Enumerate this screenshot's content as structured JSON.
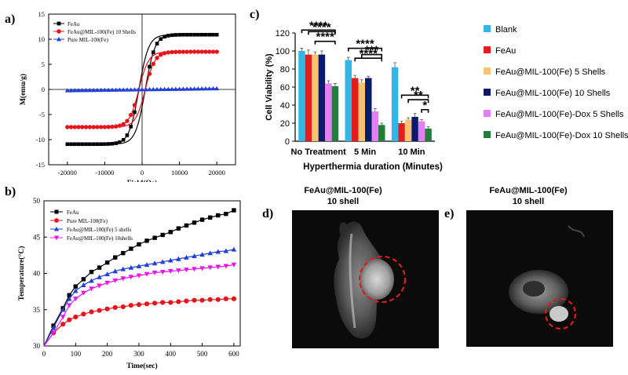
{
  "panel_labels": {
    "a": "a)",
    "b": "b)",
    "c": "c)",
    "d": "d)",
    "e": "e)"
  },
  "chart_data": [
    {
      "id": "a",
      "type": "line",
      "title": "",
      "xlabel": "Field(Oe)",
      "ylabel": "M(emu/g)",
      "xlim": [
        -25000,
        25000
      ],
      "ylim": [
        -15,
        15
      ],
      "xticks": [
        -20000,
        -10000,
        0,
        10000,
        20000
      ],
      "xtick_labels": [
        "-20000",
        "-10000",
        "0",
        "10000",
        "20000"
      ],
      "yticks": [
        -15,
        -10,
        -5,
        0,
        5,
        10,
        15
      ],
      "ytick_labels": [
        "-15",
        "-10",
        "-5",
        "0",
        "5",
        "10",
        "15"
      ],
      "legend": "top-left",
      "series": [
        {
          "name": "FeAu",
          "color": "#000000",
          "marker": "square",
          "Ms": 10.9,
          "Hc": 850
        },
        {
          "name": "FeAu@MIL-100(Fe) 10 Shells",
          "color": "#e8141b",
          "marker": "circle",
          "Ms": 7.5,
          "Hc": 850
        },
        {
          "name": "Pure MIL-100(Fe)",
          "color": "#1f3fd6",
          "marker": "triangle",
          "x": [
            -20000,
            20000
          ],
          "y": [
            -0.2,
            0.2
          ]
        }
      ]
    },
    {
      "id": "b",
      "type": "line",
      "title": "",
      "xlabel": "Time(sec)",
      "ylabel": "Temperature(°C)",
      "xlim": [
        0,
        620
      ],
      "ylim": [
        30,
        50
      ],
      "xticks": [
        0,
        100,
        200,
        300,
        400,
        500,
        600
      ],
      "xtick_labels": [
        "0",
        "100",
        "200",
        "300",
        "400",
        "500",
        "600"
      ],
      "yticks": [
        30,
        35,
        40,
        45,
        50
      ],
      "ytick_labels": [
        "30",
        "35",
        "40",
        "45",
        "50"
      ],
      "legend": "top-left",
      "x": [
        0,
        30,
        60,
        80,
        100,
        125,
        150,
        175,
        200,
        225,
        250,
        275,
        300,
        325,
        350,
        375,
        400,
        425,
        450,
        475,
        500,
        525,
        550,
        575,
        600
      ],
      "series": [
        {
          "name": "FeAu",
          "color": "#000000",
          "marker": "square",
          "values": [
            30,
            32.8,
            35.2,
            37.0,
            38.2,
            39.2,
            40.2,
            40.8,
            41.5,
            42.2,
            42.8,
            43.4,
            44.0,
            44.5,
            44.9,
            45.3,
            45.7,
            46.2,
            46.6,
            47.0,
            47.4,
            47.7,
            48.0,
            48.2,
            48.7
          ]
        },
        {
          "name": "Pure MIL-100(Fe)",
          "color": "#e8141b",
          "marker": "circle",
          "values": [
            30,
            31.8,
            33.0,
            33.6,
            34.0,
            34.4,
            34.7,
            34.9,
            35.1,
            35.3,
            35.4,
            35.6,
            35.7,
            35.8,
            35.9,
            36.0,
            36.0,
            36.1,
            36.2,
            36.3,
            36.3,
            36.4,
            36.4,
            36.5,
            36.5
          ]
        },
        {
          "name": "FeAu@MIL-100(Fe) 5 shells",
          "color": "#1f3fd6",
          "marker": "triangle",
          "values": [
            30,
            32.5,
            35.0,
            36.5,
            37.6,
            38.4,
            39.0,
            39.5,
            39.9,
            40.3,
            40.6,
            40.8,
            41.0,
            41.2,
            41.4,
            41.6,
            41.8,
            42.0,
            42.2,
            42.4,
            42.6,
            42.8,
            43.0,
            43.1,
            43.3
          ]
        },
        {
          "name": "FeAu@MIL-100(Fe) 10shells",
          "color": "#e815e8",
          "marker": "triangle-down",
          "values": [
            30,
            31.8,
            34.0,
            35.6,
            36.5,
            37.3,
            37.9,
            38.3,
            38.7,
            39.0,
            39.3,
            39.5,
            39.7,
            39.9,
            40.1,
            40.2,
            40.3,
            40.4,
            40.5,
            40.6,
            40.7,
            40.8,
            40.9,
            41.0,
            41.2
          ]
        }
      ]
    },
    {
      "id": "c",
      "type": "bar",
      "title": "",
      "xlabel": "Hyperthermia duration (Minutes)",
      "ylabel": "Cell Viability (%)",
      "ylim": [
        0,
        120
      ],
      "yticks": [
        0,
        20,
        40,
        60,
        80,
        100,
        120
      ],
      "ytick_labels": [
        "0",
        "20",
        "40",
        "60",
        "80",
        "100",
        "120"
      ],
      "categories": [
        "No Treatment",
        "5 Min",
        "10 Min"
      ],
      "legend": "right",
      "series": [
        {
          "name": "Blank",
          "color": "#33b5e5",
          "values": [
            100,
            90,
            82
          ],
          "errors": [
            3,
            3,
            5
          ]
        },
        {
          "name": "FeAu",
          "color": "#e31d1d",
          "values": [
            96,
            70,
            20
          ],
          "errors": [
            5,
            3,
            2
          ]
        },
        {
          "name": "FeAu@MIL-100(Fe) 5 Shells",
          "color": "#f7c371",
          "values": [
            96,
            65,
            24
          ],
          "errors": [
            3,
            3,
            2
          ]
        },
        {
          "name": "FeAu@MIL-100(Fe) 10 Shells",
          "color": "#0c1a6b",
          "values": [
            96,
            70,
            27
          ],
          "errors": [
            4,
            2,
            4
          ]
        },
        {
          "name": "FeAu@MIL-100(Fe)-Dox 5 Shells",
          "color": "#e47ef2",
          "values": [
            64,
            33,
            22
          ],
          "errors": [
            3,
            3,
            2
          ]
        },
        {
          "name": "FeAu@MIL-100(Fe)-Dox 10 Shells",
          "color": "#237d3b",
          "values": [
            61,
            18,
            14
          ],
          "errors": [
            3,
            2,
            2
          ]
        }
      ],
      "significance": [
        {
          "text": "****",
          "group": 0,
          "from": 5,
          "to": 2,
          "level": 1
        },
        {
          "text": "****",
          "group": 0,
          "from": 5,
          "to": 1,
          "level": 2
        },
        {
          "text": "****",
          "group": 0,
          "from": 5,
          "to": 0,
          "level": 3
        },
        {
          "text": "****",
          "group": 1,
          "from": 5,
          "to": 0,
          "level": 1
        },
        {
          "text": "****",
          "group": 1,
          "from": 5,
          "to": 1,
          "level": 2
        },
        {
          "text": "***",
          "group": 1,
          "from": 5,
          "to": 2,
          "level": 3
        },
        {
          "text": "*",
          "group": 2,
          "from": 5,
          "to": 4,
          "level": 1
        },
        {
          "text": "**",
          "group": 2,
          "from": 5,
          "to": 2,
          "level": 2
        },
        {
          "text": "**",
          "group": 2,
          "from": 5,
          "to": 1,
          "level": 3
        }
      ]
    }
  ],
  "mri": {
    "d": {
      "title_line1": "FeAu@MIL-100(Fe)",
      "title_line2": "10 shell"
    },
    "e": {
      "title_line1": "FeAu@MIL-100(Fe)",
      "title_line2": "10 shell"
    }
  }
}
